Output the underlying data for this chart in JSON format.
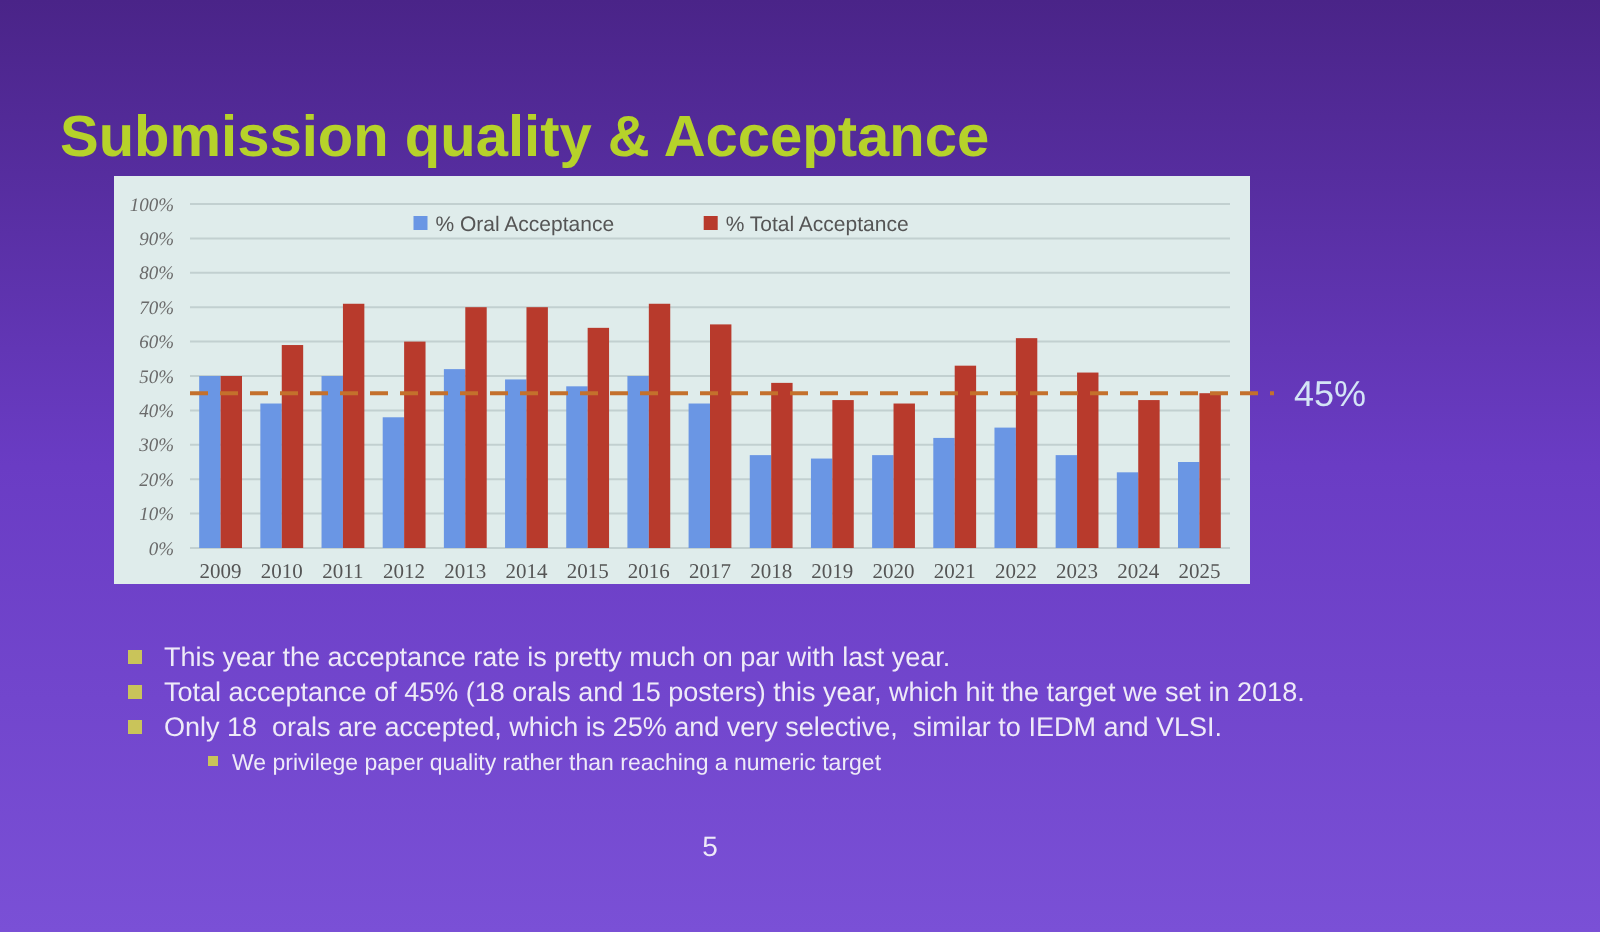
{
  "chart_data": {
    "type": "bar",
    "title": "Submission quality & Acceptance",
    "categories": [
      "2009",
      "2010",
      "2011",
      "2012",
      "2013",
      "2014",
      "2015",
      "2016",
      "2017",
      "2018",
      "2019",
      "2020",
      "2021",
      "2022",
      "2023",
      "2024",
      "2025"
    ],
    "series": [
      {
        "name": "% Oral Acceptance",
        "color": "#6a96e4",
        "values": [
          50,
          42,
          50,
          38,
          52,
          49,
          47,
          50,
          42,
          27,
          26,
          27,
          32,
          35,
          27,
          22,
          25
        ]
      },
      {
        "name": "% Total Acceptance",
        "color": "#b83a2c",
        "values": [
          50,
          59,
          71,
          60,
          70,
          70,
          64,
          71,
          65,
          48,
          43,
          42,
          53,
          61,
          51,
          43,
          45
        ]
      }
    ],
    "ylim": [
      0,
      100
    ],
    "yticks": [
      {
        "value": 0,
        "label": "0%"
      },
      {
        "value": 10,
        "label": "10%"
      },
      {
        "value": 20,
        "label": "20%"
      },
      {
        "value": 30,
        "label": "30%"
      },
      {
        "value": 40,
        "label": "40%"
      },
      {
        "value": 50,
        "label": "50%"
      },
      {
        "value": 60,
        "label": "60%"
      },
      {
        "value": 70,
        "label": "70%"
      },
      {
        "value": 80,
        "label": "80%"
      },
      {
        "value": 90,
        "label": "90%"
      },
      {
        "value": 100,
        "label": "100%"
      }
    ],
    "grid": "y",
    "legend": "top",
    "ref_lines": [
      {
        "axis": "y",
        "value": 45,
        "label": "45%",
        "color": "#c4702c",
        "line_style": "dashed"
      }
    ],
    "annotations": [
      "This year the acceptance rate is pretty much on par with last year.",
      "Total acceptance of 45% (18 orals and 15 posters) this year, which hit the target we set in 2018.",
      "Only 18  orals are accepted, which is 25% and very selective,  similar to IEDM and VLSI.",
      "We privilege paper quality rather than reaching a numeric target",
      "5"
    ]
  }
}
